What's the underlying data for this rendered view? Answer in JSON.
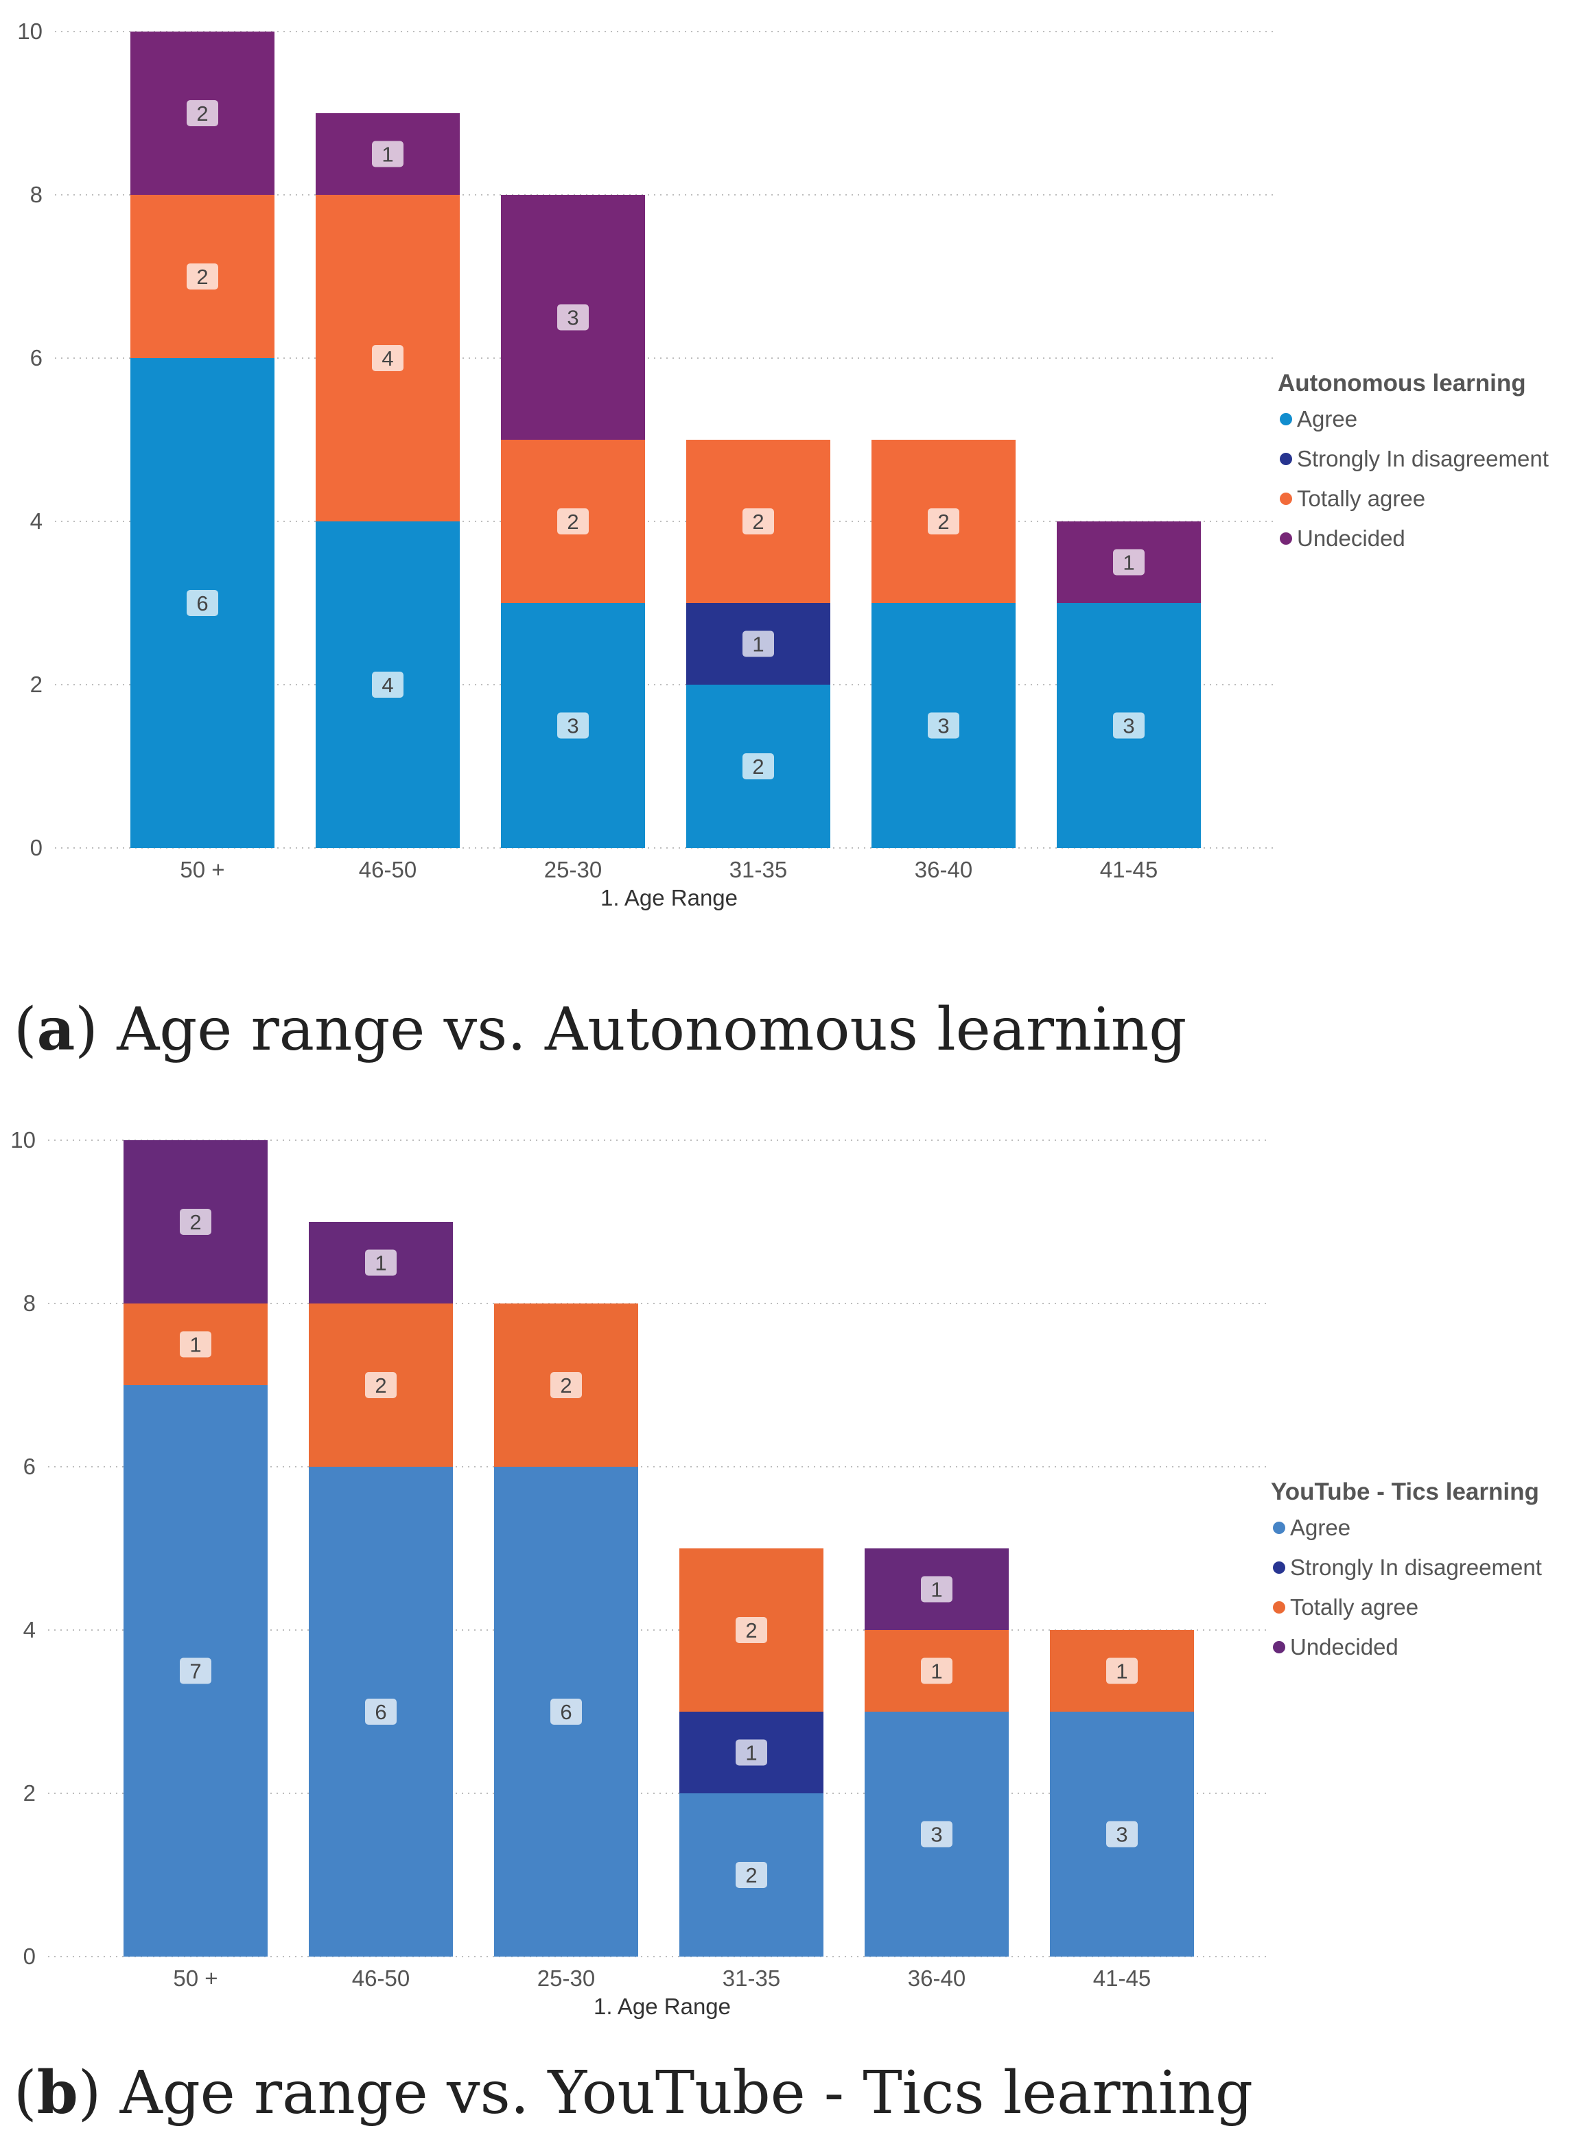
{
  "chart_data": [
    {
      "type": "bar",
      "stacked": true,
      "caption_letter": "a",
      "caption_text": "Age range vs. Autonomous learning",
      "xlabel": "1. Age Range",
      "ylabel": "",
      "ylim": [
        0,
        10
      ],
      "yticks": [
        0,
        2,
        4,
        6,
        8,
        10
      ],
      "grid": true,
      "legend_title": "Autonomous learning",
      "legend_position": "right",
      "categories": [
        "50 +",
        "46-50",
        "25-30",
        "31-35",
        "36-40",
        "41-45"
      ],
      "series": [
        {
          "name": "Agree",
          "color": "#118DCE",
          "values": [
            6,
            4,
            3,
            2,
            3,
            3
          ]
        },
        {
          "name": "Strongly In disagreement",
          "color": "#27348F",
          "values": [
            0,
            0,
            0,
            1,
            0,
            0
          ]
        },
        {
          "name": "Totally agree",
          "color": "#F26B3A",
          "values": [
            2,
            4,
            2,
            2,
            2,
            0
          ]
        },
        {
          "name": "Undecided",
          "color": "#772777",
          "values": [
            2,
            1,
            3,
            0,
            0,
            1
          ]
        }
      ]
    },
    {
      "type": "bar",
      "stacked": true,
      "caption_letter": "b",
      "caption_text": "Age range vs. YouTube - Tics learning",
      "xlabel": "1. Age Range",
      "ylabel": "",
      "ylim": [
        0,
        10
      ],
      "yticks": [
        0,
        2,
        4,
        6,
        8,
        10
      ],
      "grid": true,
      "legend_title": "YouTube - Tics learning",
      "legend_position": "right",
      "categories": [
        "50 +",
        "46-50",
        "25-30",
        "31-35",
        "36-40",
        "41-45"
      ],
      "series": [
        {
          "name": "Agree",
          "color": "#4684C6",
          "values": [
            7,
            6,
            6,
            2,
            3,
            3
          ]
        },
        {
          "name": "Strongly In disagreement",
          "color": "#283592",
          "values": [
            0,
            0,
            0,
            1,
            0,
            0
          ]
        },
        {
          "name": "Totally agree",
          "color": "#EB6A35",
          "values": [
            1,
            2,
            2,
            2,
            1,
            1
          ]
        },
        {
          "name": "Undecided",
          "color": "#672A7A",
          "values": [
            2,
            1,
            0,
            0,
            1,
            0
          ]
        }
      ]
    }
  ]
}
